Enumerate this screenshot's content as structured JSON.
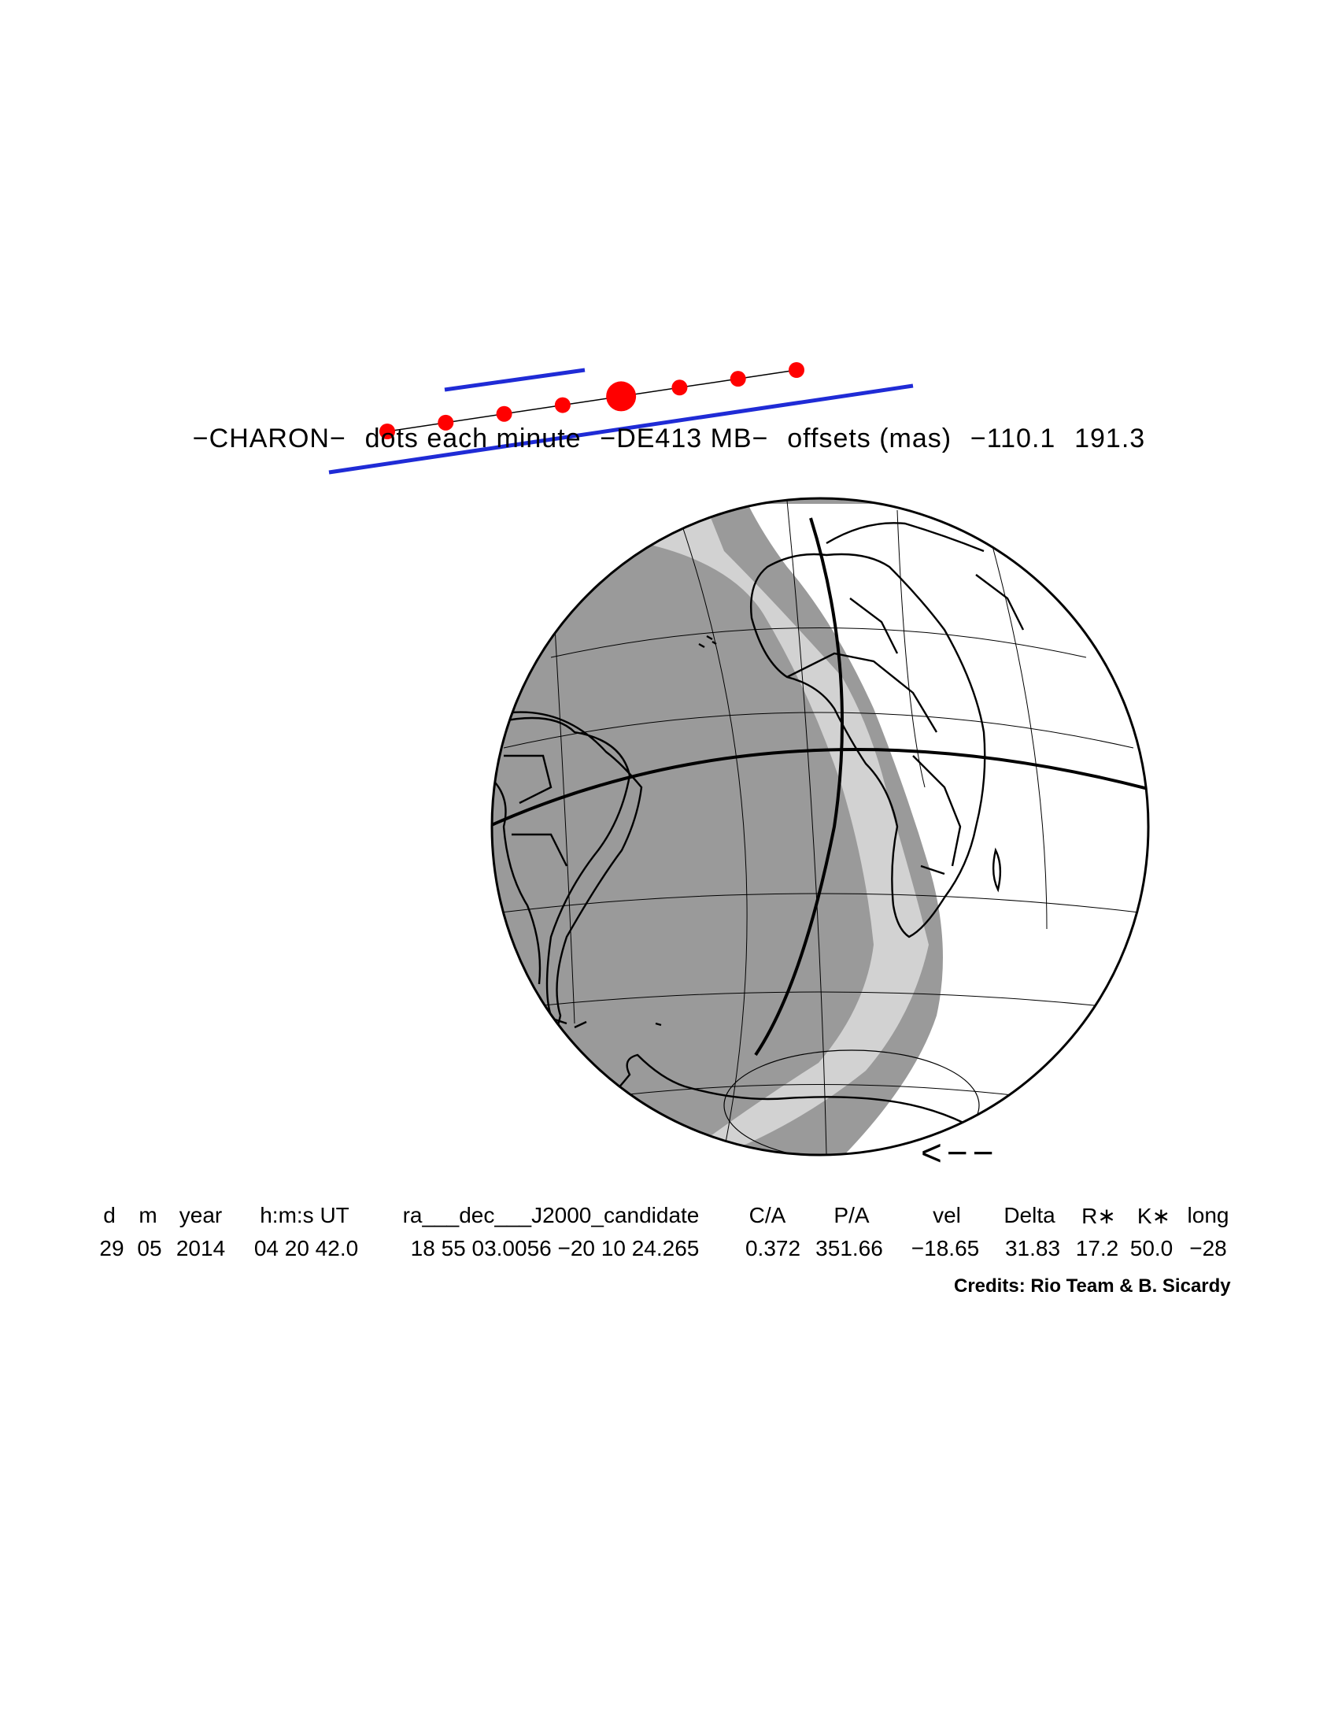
{
  "header": {
    "object": "−CHARON−",
    "note": "dots each minute",
    "ephemeris": "−DE413 MB−",
    "offsets_label": "offsets (mas)",
    "offset_ra": "−110.1",
    "offset_dec": "191.3"
  },
  "map": {
    "colors": {
      "night": "#9a9a9a",
      "twilight": "#d2d2d2",
      "day": "#ffffff",
      "outline": "#000000",
      "shadow_limit": "#1f2bd6",
      "center_dots": "#ff0000"
    },
    "track_dots": 8,
    "closest_approach_dot_index": 4,
    "direction_arrow": "<−−"
  },
  "table": {
    "headers": [
      "d",
      "m",
      "year",
      "h:m:s UT",
      "ra___dec___J2000_candidate",
      "C/A",
      "P/A",
      "vel",
      "Delta",
      "R∗",
      "K∗",
      "long"
    ],
    "values": [
      "29",
      "05",
      "2014",
      "04 20 42.0",
      "18 55 03.0056 −20 10 24.265",
      "0.372",
      "351.66",
      "−18.65",
      "31.83",
      "17.2",
      "50.0",
      "−28"
    ]
  },
  "credits": "Credits: Rio Team & B. Sicardy"
}
